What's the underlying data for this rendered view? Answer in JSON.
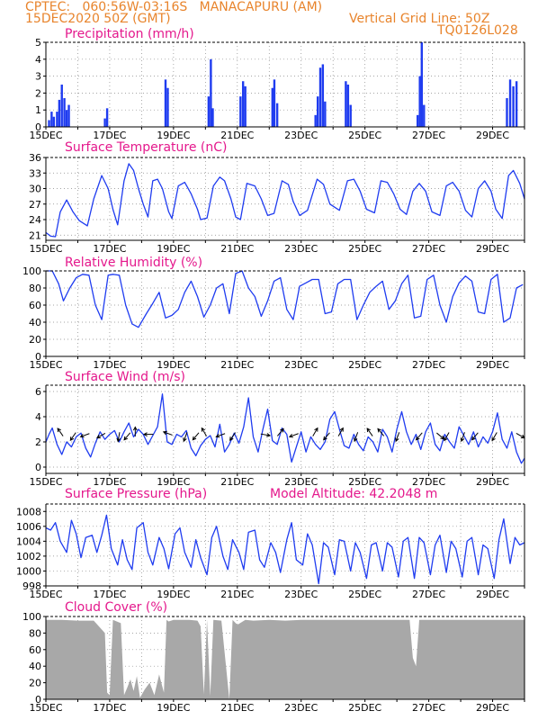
{
  "header": {
    "line1": "CPTEC:   060:56W-03:16S   MANACAPURU (AM)",
    "line2": "15DEC2020 50Z (GMT)",
    "grid_note": "Vertical Grid Line: 50Z",
    "code": "TQ0126L028"
  },
  "chart_data": [
    {
      "type": "bar",
      "title": "Precipitation (mm/h)",
      "ylim": [
        0,
        5
      ],
      "yticks": [
        "0",
        "1",
        "2",
        "3",
        "4",
        "5"
      ],
      "xticks": [
        "15DEC",
        "17DEC",
        "19DEC",
        "21DEC",
        "23DEC",
        "25DEC",
        "27DEC",
        "29DEC"
      ],
      "x_day_range": [
        15,
        30
      ],
      "bars": [
        [
          15.1,
          0.4
        ],
        [
          15.18,
          0.9
        ],
        [
          15.25,
          0.6
        ],
        [
          15.35,
          0.9
        ],
        [
          15.42,
          1.6
        ],
        [
          15.5,
          2.5
        ],
        [
          15.58,
          1.7
        ],
        [
          15.65,
          1.0
        ],
        [
          15.72,
          1.3
        ],
        [
          16.85,
          0.5
        ],
        [
          16.92,
          1.1
        ],
        [
          18.75,
          2.8
        ],
        [
          18.82,
          2.3
        ],
        [
          20.1,
          1.8
        ],
        [
          20.17,
          4.0
        ],
        [
          20.23,
          1.1
        ],
        [
          21.1,
          1.8
        ],
        [
          21.18,
          2.7
        ],
        [
          21.25,
          2.4
        ],
        [
          22.1,
          2.3
        ],
        [
          22.16,
          2.8
        ],
        [
          22.25,
          1.4
        ],
        [
          23.45,
          0.7
        ],
        [
          23.52,
          1.8
        ],
        [
          23.6,
          3.5
        ],
        [
          23.68,
          3.7
        ],
        [
          23.75,
          1.5
        ],
        [
          24.4,
          2.7
        ],
        [
          24.47,
          2.5
        ],
        [
          24.55,
          1.3
        ],
        [
          26.65,
          0.7
        ],
        [
          26.72,
          3.0
        ],
        [
          26.78,
          5.0
        ],
        [
          26.85,
          1.3
        ],
        [
          29.45,
          1.7
        ],
        [
          29.55,
          2.8
        ],
        [
          29.65,
          2.4
        ],
        [
          29.75,
          2.7
        ]
      ]
    },
    {
      "type": "line",
      "title": "Surface Temperature (nC)",
      "ylim": [
        20,
        36
      ],
      "yticks": [
        "21",
        "24",
        "27",
        "30",
        "33",
        "36"
      ],
      "xticks": [
        "15DEC",
        "17DEC",
        "19DEC",
        "21DEC",
        "23DEC",
        "25DEC",
        "27DEC",
        "29DEC"
      ],
      "x_day_range": [
        15,
        30
      ],
      "x": [
        15.0,
        15.15,
        15.3,
        15.45,
        15.65,
        15.85,
        16.05,
        16.3,
        16.5,
        16.75,
        16.95,
        17.1,
        17.25,
        17.45,
        17.6,
        17.75,
        17.9,
        18.05,
        18.2,
        18.35,
        18.5,
        18.65,
        18.85,
        18.95,
        19.15,
        19.35,
        19.55,
        19.75,
        19.85,
        20.05,
        20.25,
        20.45,
        20.6,
        20.8,
        20.95,
        21.1,
        21.3,
        21.55,
        21.75,
        21.95,
        22.15,
        22.4,
        22.6,
        22.75,
        22.95,
        23.2,
        23.5,
        23.7,
        23.9,
        24.2,
        24.45,
        24.65,
        24.85,
        25.05,
        25.3,
        25.5,
        25.7,
        25.9,
        26.1,
        26.3,
        26.5,
        26.7,
        26.9,
        27.1,
        27.35,
        27.55,
        27.75,
        27.95,
        28.15,
        28.35,
        28.55,
        28.75,
        28.95,
        29.1,
        29.3,
        29.5,
        29.65,
        29.85,
        30.0
      ],
      "y": [
        21.5,
        20.8,
        20.7,
        25.5,
        27.8,
        25.5,
        23.8,
        22.8,
        28.0,
        32.5,
        30.0,
        26.0,
        23.0,
        31.5,
        34.8,
        33.5,
        30.0,
        27.0,
        24.5,
        31.5,
        31.8,
        30.0,
        25.5,
        24.2,
        30.5,
        31.2,
        29.0,
        26.0,
        24.0,
        24.3,
        30.5,
        32.2,
        31.5,
        28.0,
        24.5,
        24.0,
        31.0,
        30.5,
        28.0,
        24.8,
        25.2,
        31.5,
        30.8,
        27.5,
        24.8,
        25.8,
        31.8,
        30.8,
        27.0,
        25.8,
        31.5,
        31.8,
        29.5,
        26.0,
        25.3,
        31.5,
        31.2,
        29.0,
        26.0,
        25.0,
        29.5,
        31.0,
        29.5,
        25.5,
        24.8,
        30.5,
        31.2,
        29.5,
        25.8,
        24.5,
        30.0,
        31.5,
        29.5,
        26.0,
        24.2,
        32.5,
        33.5,
        31.0,
        28.0
      ]
    },
    {
      "type": "line",
      "title": "Relative Humidity (%)",
      "ylim": [
        0,
        100
      ],
      "yticks": [
        "0",
        "20",
        "40",
        "60",
        "80",
        "100"
      ],
      "xticks": [
        "15DEC",
        "17DEC",
        "19DEC",
        "21DEC",
        "23DEC",
        "25DEC",
        "27DEC",
        "29DEC"
      ],
      "x_day_range": [
        15,
        30
      ],
      "x": [
        15.0,
        15.2,
        15.4,
        15.55,
        15.75,
        15.95,
        16.15,
        16.35,
        16.55,
        16.75,
        16.95,
        17.1,
        17.3,
        17.5,
        17.7,
        17.9,
        18.15,
        18.35,
        18.55,
        18.75,
        18.95,
        19.15,
        19.35,
        19.55,
        19.75,
        19.95,
        20.15,
        20.35,
        20.55,
        20.75,
        20.95,
        21.15,
        21.35,
        21.55,
        21.75,
        21.95,
        22.15,
        22.35,
        22.55,
        22.75,
        22.95,
        23.15,
        23.35,
        23.55,
        23.75,
        23.95,
        24.15,
        24.35,
        24.55,
        24.75,
        24.95,
        25.15,
        25.35,
        25.55,
        25.75,
        25.95,
        26.15,
        26.35,
        26.55,
        26.75,
        26.95,
        27.15,
        27.35,
        27.55,
        27.75,
        27.95,
        28.15,
        28.35,
        28.55,
        28.75,
        28.95,
        29.15,
        29.35,
        29.55,
        29.75,
        29.95
      ],
      "y": [
        100,
        100,
        85,
        65,
        80,
        92,
        96,
        95,
        60,
        43,
        95,
        96,
        95,
        60,
        38,
        34,
        50,
        62,
        75,
        45,
        48,
        55,
        75,
        88,
        70,
        46,
        60,
        80,
        85,
        50,
        97,
        100,
        80,
        70,
        47,
        65,
        88,
        92,
        55,
        43,
        82,
        86,
        90,
        90,
        50,
        52,
        85,
        90,
        90,
        43,
        60,
        75,
        82,
        88,
        55,
        65,
        85,
        95,
        45,
        47,
        90,
        95,
        60,
        40,
        70,
        86,
        94,
        88,
        52,
        50,
        90,
        96,
        40,
        45,
        80,
        84
      ]
    },
    {
      "type": "line",
      "title": "Surface Wind (m/s)",
      "ylim": [
        -0.5,
        6.5
      ],
      "yticks": [
        "0",
        "2",
        "4",
        "6"
      ],
      "xticks": [
        "15DEC",
        "17DEC",
        "19DEC",
        "21DEC",
        "23DEC",
        "25DEC",
        "27DEC",
        "29DEC"
      ],
      "x_day_range": [
        15,
        30
      ],
      "x": [
        15.0,
        15.1,
        15.2,
        15.35,
        15.5,
        15.65,
        15.8,
        15.95,
        16.1,
        16.25,
        16.4,
        16.55,
        16.7,
        16.85,
        17.0,
        17.15,
        17.3,
        17.45,
        17.6,
        17.75,
        17.9,
        18.05,
        18.2,
        18.35,
        18.5,
        18.65,
        18.8,
        18.95,
        19.1,
        19.25,
        19.4,
        19.55,
        19.7,
        19.85,
        20.0,
        20.15,
        20.3,
        20.45,
        20.6,
        20.75,
        20.9,
        21.05,
        21.2,
        21.35,
        21.5,
        21.65,
        21.8,
        21.95,
        22.1,
        22.25,
        22.4,
        22.55,
        22.7,
        22.85,
        23.0,
        23.15,
        23.3,
        23.45,
        23.6,
        23.75,
        23.9,
        24.05,
        24.2,
        24.35,
        24.5,
        24.65,
        24.8,
        24.95,
        25.1,
        25.25,
        25.4,
        25.55,
        25.7,
        25.85,
        26.0,
        26.15,
        26.3,
        26.45,
        26.6,
        26.75,
        26.9,
        27.05,
        27.2,
        27.35,
        27.5,
        27.65,
        27.8,
        27.95,
        28.1,
        28.25,
        28.4,
        28.55,
        28.7,
        28.85,
        29.0,
        29.15,
        29.3,
        29.45,
        29.6,
        29.75,
        29.9,
        30.0
      ],
      "y": [
        2.0,
        2.6,
        3.1,
        1.8,
        1.0,
        2.0,
        1.6,
        2.4,
        2.7,
        1.5,
        0.8,
        1.9,
        2.8,
        2.2,
        2.6,
        2.9,
        2.0,
        2.8,
        3.5,
        2.4,
        3.0,
        2.6,
        1.8,
        2.5,
        3.2,
        5.8,
        2.0,
        1.8,
        2.6,
        2.4,
        2.9,
        1.5,
        0.9,
        1.7,
        2.2,
        2.5,
        1.6,
        3.4,
        1.2,
        1.8,
        2.7,
        1.9,
        3.2,
        5.5,
        2.4,
        1.2,
        3.0,
        4.6,
        2.1,
        1.8,
        3.1,
        2.6,
        0.4,
        1.6,
        2.8,
        1.2,
        2.4,
        1.8,
        1.4,
        2.0,
        3.8,
        4.4,
        3.0,
        1.7,
        1.5,
        2.6,
        1.8,
        1.3,
        2.4,
        2.0,
        1.2,
        3.0,
        2.4,
        1.2,
        3.0,
        4.4,
        2.8,
        1.8,
        2.6,
        1.4,
        2.8,
        3.5,
        1.8,
        1.3,
        2.6,
        2.0,
        1.5,
        3.2,
        2.5,
        1.8,
        2.8,
        1.6,
        2.4,
        1.9,
        2.8,
        4.3,
        2.2,
        1.5,
        2.8,
        1.2,
        0.3,
        0.7
      ],
      "wind_arrows": [
        {
          "day": 15.5,
          "dir_deg": 125
        },
        {
          "day": 15.9,
          "dir_deg": 235
        },
        {
          "day": 16.3,
          "dir_deg": 200
        },
        {
          "day": 16.8,
          "dir_deg": 210
        },
        {
          "day": 17.3,
          "dir_deg": 260
        },
        {
          "day": 17.6,
          "dir_deg": 230
        },
        {
          "day": 17.8,
          "dir_deg": 90
        },
        {
          "day": 18.3,
          "dir_deg": 180
        },
        {
          "day": 18.9,
          "dir_deg": 160
        },
        {
          "day": 19.4,
          "dir_deg": 250
        },
        {
          "day": 19.75,
          "dir_deg": 230
        },
        {
          "day": 20.0,
          "dir_deg": 120
        },
        {
          "day": 20.55,
          "dir_deg": 200
        },
        {
          "day": 20.9,
          "dir_deg": 235
        },
        {
          "day": 21.8,
          "dir_deg": 350
        },
        {
          "day": 22.3,
          "dir_deg": 50
        },
        {
          "day": 22.85,
          "dir_deg": 200
        },
        {
          "day": 23.4,
          "dir_deg": 60
        },
        {
          "day": 23.85,
          "dir_deg": 230
        },
        {
          "day": 24.2,
          "dir_deg": 60
        },
        {
          "day": 24.75,
          "dir_deg": 250
        },
        {
          "day": 25.2,
          "dir_deg": 125
        },
        {
          "day": 25.55,
          "dir_deg": 130
        },
        {
          "day": 26.05,
          "dir_deg": 250
        },
        {
          "day": 26.75,
          "dir_deg": 230
        },
        {
          "day": 27.3,
          "dir_deg": 320
        },
        {
          "day": 27.6,
          "dir_deg": 240
        },
        {
          "day": 28.1,
          "dir_deg": 250
        },
        {
          "day": 28.5,
          "dir_deg": 230
        },
        {
          "day": 29.1,
          "dir_deg": 240
        },
        {
          "day": 29.8,
          "dir_deg": 330
        }
      ]
    },
    {
      "type": "line",
      "title": "Surface Pressure (hPa)",
      "annotation": "Model Altitude: 42.2048 m",
      "ylim": [
        998,
        1009
      ],
      "yticks": [
        "998",
        "1000",
        "1002",
        "1004",
        "1006",
        "1008"
      ],
      "xticks": [
        "15DEC",
        "17DEC",
        "19DEC",
        "21DEC",
        "23DEC",
        "25DEC",
        "27DEC",
        "29DEC"
      ],
      "x_day_range": [
        15,
        30
      ],
      "x": [
        15.0,
        15.15,
        15.3,
        15.45,
        15.65,
        15.8,
        15.95,
        16.1,
        16.25,
        16.45,
        16.6,
        16.75,
        16.9,
        17.05,
        17.25,
        17.4,
        17.55,
        17.7,
        17.85,
        18.05,
        18.2,
        18.35,
        18.55,
        18.7,
        18.85,
        19.05,
        19.2,
        19.35,
        19.55,
        19.7,
        19.85,
        20.05,
        20.2,
        20.35,
        20.55,
        20.7,
        20.85,
        21.05,
        21.2,
        21.35,
        21.55,
        21.7,
        21.85,
        22.05,
        22.2,
        22.35,
        22.55,
        22.7,
        22.85,
        23.05,
        23.2,
        23.35,
        23.55,
        23.7,
        23.85,
        24.05,
        24.2,
        24.35,
        24.55,
        24.7,
        24.85,
        25.05,
        25.2,
        25.35,
        25.55,
        25.7,
        25.85,
        26.05,
        26.2,
        26.35,
        26.55,
        26.7,
        26.85,
        27.05,
        27.2,
        27.35,
        27.55,
        27.7,
        27.85,
        28.05,
        28.2,
        28.35,
        28.55,
        28.7,
        28.85,
        29.05,
        29.2,
        29.35,
        29.55,
        29.7,
        29.85,
        30.0
      ],
      "y": [
        1005.8,
        1005.5,
        1006.5,
        1004.0,
        1002.5,
        1006.8,
        1005.0,
        1001.8,
        1004.5,
        1004.8,
        1002.5,
        1004.8,
        1007.5,
        1003.0,
        1000.8,
        1004.2,
        1001.5,
        1000.2,
        1005.8,
        1006.5,
        1002.5,
        1000.8,
        1004.5,
        1003.0,
        1000.3,
        1005.0,
        1005.8,
        1002.5,
        1000.5,
        1004.2,
        1001.8,
        999.5,
        1004.5,
        1006.0,
        1002.0,
        1000.2,
        1004.2,
        1002.5,
        1000.2,
        1005.2,
        1005.5,
        1001.5,
        1000.5,
        1003.8,
        1002.5,
        999.8,
        1004.2,
        1006.5,
        1001.5,
        1000.8,
        1005.0,
        1003.5,
        998.3,
        1003.8,
        1003.2,
        999.5,
        1004.2,
        1004.0,
        1000.0,
        1003.8,
        1002.5,
        999.0,
        1003.5,
        1003.8,
        1000.0,
        1003.8,
        1003.2,
        999.2,
        1004.0,
        1004.5,
        999.0,
        1004.5,
        1003.8,
        999.5,
        1003.5,
        1004.8,
        999.8,
        1004.0,
        1003.0,
        999.2,
        1004.0,
        1004.5,
        999.5,
        1003.5,
        1003.0,
        999.0,
        1004.2,
        1007.0,
        1001.0,
        1004.5,
        1003.5,
        1003.8
      ]
    },
    {
      "type": "area",
      "title": "Cloud Cover (%)",
      "ylim": [
        0,
        100
      ],
      "yticks": [
        "0",
        "20",
        "40",
        "60",
        "80",
        "100"
      ],
      "xticks": [
        "15DEC",
        "17DEC",
        "19DEC",
        "21DEC",
        "23DEC",
        "25DEC",
        "27DEC",
        "29DEC"
      ],
      "x_day_range": [
        15,
        30
      ],
      "x": [
        15.0,
        15.5,
        16.0,
        16.5,
        16.85,
        16.92,
        17.0,
        17.1,
        17.35,
        17.45,
        17.55,
        17.65,
        17.75,
        17.85,
        17.95,
        18.1,
        18.25,
        18.4,
        18.55,
        18.7,
        18.78,
        18.85,
        19.0,
        19.5,
        19.75,
        19.85,
        19.95,
        20.05,
        20.15,
        20.25,
        20.5,
        20.75,
        20.85,
        21.0,
        21.25,
        21.5,
        22.0,
        22.5,
        23.0,
        23.5,
        24.0,
        24.5,
        25.0,
        25.5,
        26.0,
        26.4,
        26.5,
        26.6,
        26.7,
        27.0,
        27.5,
        28.0,
        28.5,
        29.0,
        29.5,
        30.0
      ],
      "y": [
        96,
        96,
        95,
        95,
        80,
        8,
        5,
        96,
        92,
        5,
        14,
        24,
        10,
        28,
        2,
        12,
        20,
        5,
        30,
        8,
        96,
        94,
        96,
        96,
        95,
        88,
        6,
        96,
        4,
        96,
        95,
        0,
        96,
        90,
        96,
        95,
        96,
        95,
        96,
        96,
        96,
        96,
        96,
        96,
        96,
        96,
        50,
        40,
        96,
        96,
        96,
        96,
        96,
        96,
        96,
        96
      ]
    }
  ]
}
